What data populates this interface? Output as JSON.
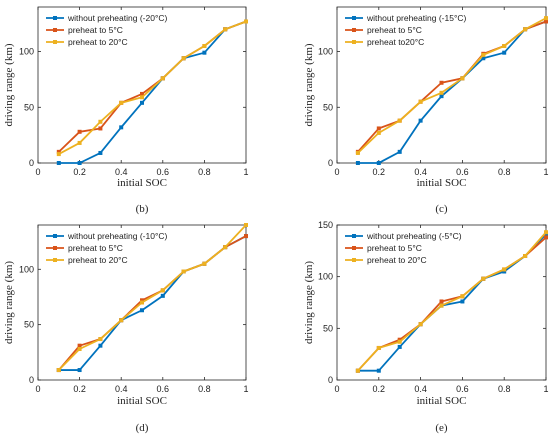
{
  "chart_data": [
    {
      "type": "line",
      "caption": "(b)",
      "xlabel": "initial SOC",
      "ylabel": "driving range (km)",
      "xlim": [
        0,
        1
      ],
      "ylim": [
        0,
        140
      ],
      "xticks": [
        "0",
        "0.2",
        "0.4",
        "0.6",
        "0.8",
        "1"
      ],
      "yticks": [
        "0",
        "50",
        "100"
      ],
      "ytick_values": [
        0,
        50,
        100
      ],
      "grid": false,
      "legend_position": "top-left",
      "x": [
        0.1,
        0.2,
        0.3,
        0.4,
        0.5,
        0.6,
        0.7,
        0.8,
        0.9,
        1.0
      ],
      "series": [
        {
          "name": "without preheating (-20°C)",
          "color": "#0072BD",
          "values": [
            0,
            0,
            9,
            32,
            54,
            76,
            94,
            99,
            120,
            127
          ]
        },
        {
          "name": "preheat to 5°C",
          "color": "#D95319",
          "values": [
            10,
            28,
            31,
            54,
            62,
            76,
            94,
            105,
            120,
            127
          ]
        },
        {
          "name": "preheat to 20°C",
          "color": "#EDB120",
          "values": [
            8,
            18,
            37,
            54,
            59,
            76,
            94,
            105,
            120,
            127
          ]
        }
      ]
    },
    {
      "type": "line",
      "caption": "(c)",
      "xlabel": "initial SOC",
      "ylabel": "driving range (km)",
      "xlim": [
        0,
        1
      ],
      "ylim": [
        0,
        140
      ],
      "xticks": [
        "0",
        "0.2",
        "0.4",
        "0.6",
        "0.8",
        "1"
      ],
      "yticks": [
        "0",
        "50",
        "100"
      ],
      "ytick_values": [
        0,
        50,
        100
      ],
      "grid": false,
      "legend_position": "top-left",
      "x": [
        0.1,
        0.2,
        0.3,
        0.4,
        0.5,
        0.6,
        0.7,
        0.8,
        0.9,
        1.0
      ],
      "series": [
        {
          "name": "without preheating (-15°C)",
          "color": "#0072BD",
          "values": [
            0,
            0,
            10,
            38,
            60,
            76,
            94,
            99,
            120,
            127
          ]
        },
        {
          "name": "preheat to 5°C",
          "color": "#D95319",
          "values": [
            10,
            31,
            38,
            55,
            72,
            76,
            98,
            105,
            120,
            127
          ]
        },
        {
          "name": "preheat to20°C",
          "color": "#EDB120",
          "values": [
            9,
            27,
            38,
            55,
            63,
            76,
            97,
            105,
            120,
            130
          ]
        }
      ]
    },
    {
      "type": "line",
      "caption": "(d)",
      "xlabel": "initial SOC",
      "ylabel": "driving range (km)",
      "xlim": [
        0,
        1
      ],
      "ylim": [
        0,
        140
      ],
      "xticks": [
        "0",
        "0.2",
        "0.4",
        "0.6",
        "0.8",
        "1"
      ],
      "yticks": [
        "0",
        "50",
        "100"
      ],
      "ytick_values": [
        0,
        50,
        100
      ],
      "grid": false,
      "legend_position": "top-left",
      "x": [
        0.1,
        0.2,
        0.3,
        0.4,
        0.5,
        0.6,
        0.7,
        0.8,
        0.9,
        1.0
      ],
      "series": [
        {
          "name": "without preheating (-10°C)",
          "color": "#0072BD",
          "values": [
            9,
            9,
            31,
            54,
            63,
            76,
            98,
            105,
            120,
            130
          ]
        },
        {
          "name": "preheat to 5°C",
          "color": "#D95319",
          "values": [
            9,
            31,
            37,
            54,
            72,
            81,
            98,
            105,
            120,
            130
          ]
        },
        {
          "name": "preheat to 20°C",
          "color": "#EDB120",
          "values": [
            9,
            28,
            37,
            54,
            70,
            81,
            98,
            105,
            120,
            140
          ]
        }
      ]
    },
    {
      "type": "line",
      "caption": "(e)",
      "xlabel": "initial SOC",
      "ylabel": "driving range (km)",
      "xlim": [
        0,
        1
      ],
      "ylim": [
        0,
        150
      ],
      "xticks": [
        "0",
        "0.2",
        "0.4",
        "0.6",
        "0.8",
        "1"
      ],
      "yticks": [
        "0",
        "50",
        "100",
        "150"
      ],
      "ytick_values": [
        0,
        50,
        100,
        150
      ],
      "grid": false,
      "legend_position": "top-left",
      "x": [
        0.1,
        0.2,
        0.3,
        0.4,
        0.5,
        0.6,
        0.7,
        0.8,
        0.9,
        1.0
      ],
      "series": [
        {
          "name": "without preheating (-5°C)",
          "color": "#0072BD",
          "values": [
            9,
            9,
            32,
            54,
            72,
            76,
            98,
            105,
            120,
            141
          ]
        },
        {
          "name": "preheat to 5°C",
          "color": "#D95319",
          "values": [
            9,
            31,
            39,
            54,
            76,
            81,
            98,
            107,
            120,
            138
          ]
        },
        {
          "name": "preheat to 20°C",
          "color": "#EDB120",
          "values": [
            9,
            31,
            37,
            54,
            72,
            81,
            98,
            107,
            120,
            143
          ]
        }
      ]
    }
  ]
}
